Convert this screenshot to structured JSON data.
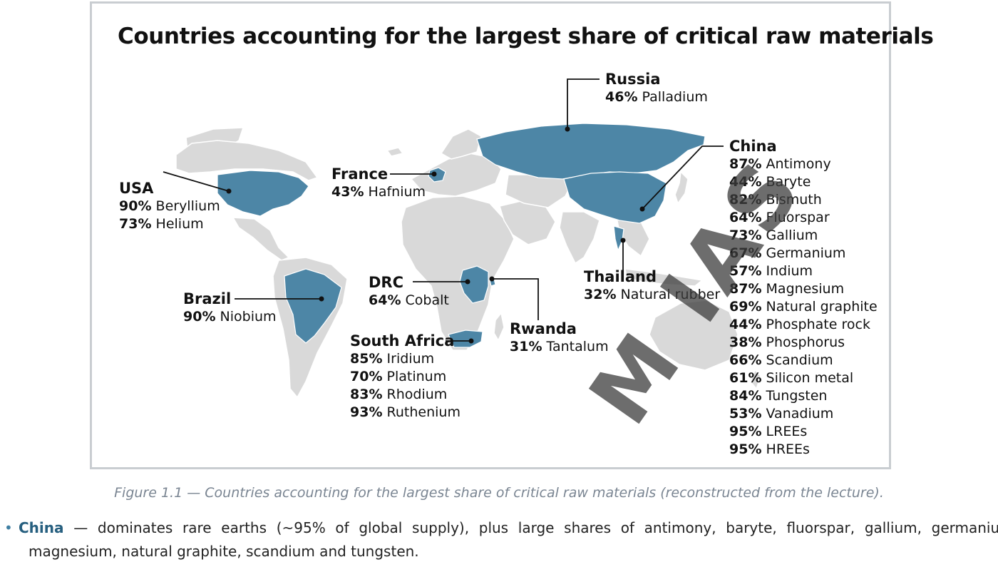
{
  "figure": {
    "title": "Countries accounting for the largest share of critical raw materials",
    "colors": {
      "highlight": "#4d86a6",
      "land": "#d9d9d9",
      "leader": "#111111"
    },
    "countries": [
      {
        "id": "usa",
        "name": "USA",
        "items": [
          {
            "pct": "90%",
            "material": "Beryllium"
          },
          {
            "pct": "73%",
            "material": "Helium"
          }
        ]
      },
      {
        "id": "france",
        "name": "France",
        "items": [
          {
            "pct": "43%",
            "material": "Hafnium"
          }
        ]
      },
      {
        "id": "russia",
        "name": "Russia",
        "items": [
          {
            "pct": "46%",
            "material": "Palladium"
          }
        ]
      },
      {
        "id": "china",
        "name": "China",
        "items": [
          {
            "pct": "87%",
            "material": "Antimony"
          },
          {
            "pct": "44%",
            "material": "Baryte"
          },
          {
            "pct": "82%",
            "material": "Bismuth"
          },
          {
            "pct": "64%",
            "material": "Fluorspar"
          },
          {
            "pct": "73%",
            "material": "Gallium"
          },
          {
            "pct": "67%",
            "material": "Germanium"
          },
          {
            "pct": "57%",
            "material": "Indium"
          },
          {
            "pct": "87%",
            "material": "Magnesium"
          },
          {
            "pct": "69%",
            "material": "Natural graphite"
          },
          {
            "pct": "44%",
            "material": "Phosphate rock"
          },
          {
            "pct": "38%",
            "material": "Phosphorus"
          },
          {
            "pct": "66%",
            "material": "Scandium"
          },
          {
            "pct": "61%",
            "material": "Silicon metal"
          },
          {
            "pct": "84%",
            "material": "Tungsten"
          },
          {
            "pct": "53%",
            "material": "Vanadium"
          },
          {
            "pct": "95%",
            "material": "LREEs"
          },
          {
            "pct": "95%",
            "material": "HREEs"
          }
        ]
      },
      {
        "id": "brazil",
        "name": "Brazil",
        "items": [
          {
            "pct": "90%",
            "material": "Niobium"
          }
        ]
      },
      {
        "id": "drc",
        "name": "DRC",
        "items": [
          {
            "pct": "64%",
            "material": "Cobalt"
          }
        ]
      },
      {
        "id": "thailand",
        "name": "Thailand",
        "items": [
          {
            "pct": "32%",
            "material": "Natural rubber"
          }
        ]
      },
      {
        "id": "south-africa",
        "name": "South Africa",
        "items": [
          {
            "pct": "85%",
            "material": "Iridium"
          },
          {
            "pct": "70%",
            "material": "Platinum"
          },
          {
            "pct": "83%",
            "material": "Rhodium"
          },
          {
            "pct": "93%",
            "material": "Ruthenium"
          }
        ]
      },
      {
        "id": "rwanda",
        "name": "Rwanda",
        "items": [
          {
            "pct": "31%",
            "material": "Tantalum"
          }
        ]
      }
    ]
  },
  "caption": "Figure 1.1 — Countries accounting for the largest share of critical raw materials (reconstructed from the lecture).",
  "bullet": {
    "name": "China",
    "text": "— dominates rare earths (~95% of global supply), plus large shares of antimony, baryte, fluorspar, gallium, germanium, magnesium, natural graphite, scandium and tungsten."
  },
  "watermark": "M IAS"
}
